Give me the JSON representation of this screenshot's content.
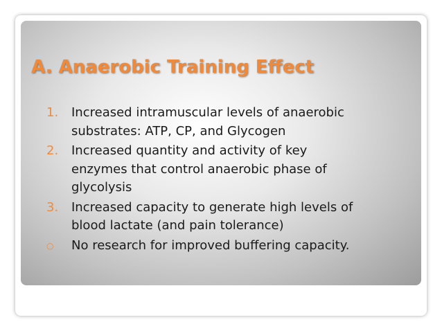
{
  "slide": {
    "title": "A. Anaerobic Training Effect",
    "items": [
      {
        "marker": "1.",
        "lines": [
          "Increased intramuscular levels of anaerobic",
          "substrates: ATP, CP, and Glycogen"
        ]
      },
      {
        "marker": "2.",
        "lines": [
          "Increased quantity and activity of key",
          "enzymes that control anaerobic phase of",
          "glycolysis"
        ]
      },
      {
        "marker": "3.",
        "lines": [
          "Increased capacity to generate high levels of",
          "blood lactate (and pain tolerance)"
        ]
      },
      {
        "marker": "○",
        "lines": [
          "No research for improved buffering capacity."
        ]
      }
    ]
  }
}
